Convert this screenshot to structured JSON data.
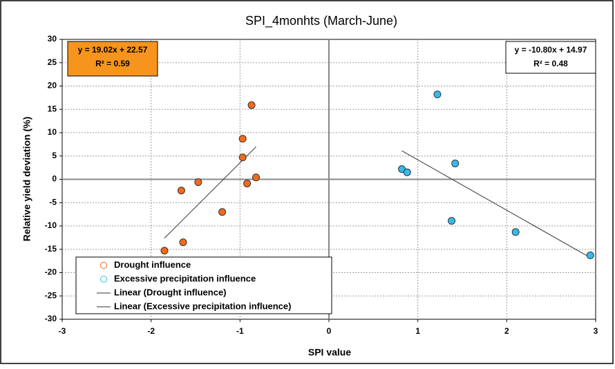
{
  "chart_data": {
    "type": "scatter",
    "title": "SPI_4monhts (March-June)",
    "x_label": "SPI value",
    "y_label": "Relative yield deviation (%)",
    "xlim": [
      -3,
      3
    ],
    "xticks": [
      -3,
      -2,
      -1,
      0,
      1,
      2,
      3
    ],
    "ylim": [
      -30,
      30
    ],
    "yticks": [
      -30,
      -25,
      -20,
      -15,
      -10,
      -5,
      0,
      5,
      10,
      15,
      20,
      25,
      30
    ],
    "grid": true,
    "legend": "lower left",
    "series": [
      {
        "name": "Drought influence",
        "color": "#f26a1b",
        "x": [
          -0.87,
          -0.97,
          -0.97,
          -0.92,
          -0.82,
          -1.47,
          -1.66,
          -1.2,
          -1.64,
          -1.85
        ],
        "values": [
          15.9,
          8.7,
          4.7,
          -0.9,
          0.4,
          -0.6,
          -2.4,
          -7,
          -13.5,
          -15.3
        ]
      },
      {
        "name": "Excessive precipitation influence",
        "color": "#33bbee",
        "x": [
          1.22,
          0.82,
          0.88,
          1.42,
          1.38,
          2.1,
          2.94
        ],
        "values": [
          18.2,
          2.2,
          1.5,
          3.4,
          -8.9,
          -11.3,
          -16.3
        ]
      }
    ],
    "trendlines": [
      {
        "name": "Linear (Drought influence)",
        "slope": 19.02,
        "intercept": 22.57,
        "equation": "y = 19.02x + 22.57",
        "r2_label": "R² = 0.59",
        "box_color": "#f7941d"
      },
      {
        "name": "Linear (Excessive precipitation influence)",
        "slope": -10.8,
        "intercept": 14.97,
        "equation": "y = -10.80x + 14.97",
        "r2_label": "R² = 0.48",
        "box_color": "#ffffff"
      }
    ]
  }
}
